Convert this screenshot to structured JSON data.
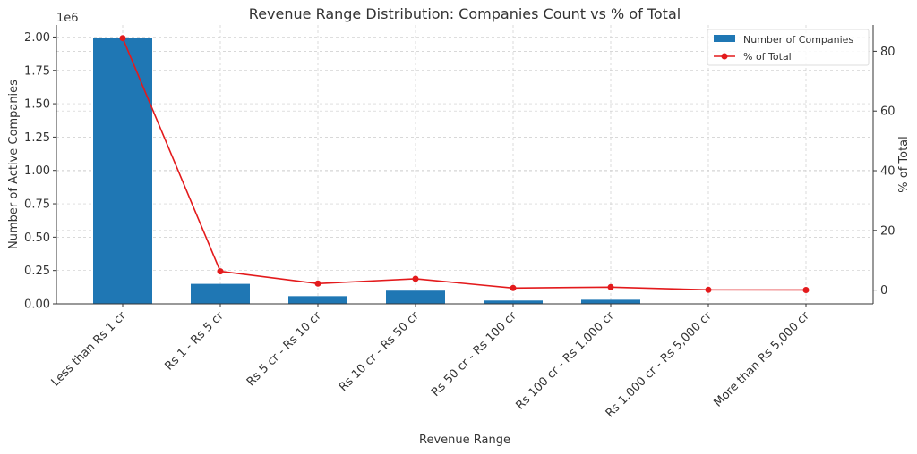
{
  "chart_data": {
    "type": "bar+line",
    "title": "Revenue Range Distribution: Companies Count vs % of Total",
    "xlabel": "Revenue Range",
    "ylabel": "Number of Active Companies",
    "ylabel_right": "% of Total",
    "y_offset_label": "1e6",
    "categories": [
      "Less than Rs 1 cr",
      "Rs 1 - Rs 5 cr",
      "Rs 5 cr - Rs 10 cr",
      "Rs 10 cr - Rs 50 cr",
      "Rs 50 cr - Rs 100 cr",
      "Rs 100 cr - Rs 1,000 cr",
      "Rs 1,000 cr - Rs 5,000 cr",
      "More than Rs 5,000 cr"
    ],
    "series": [
      {
        "name": "Number of Companies",
        "type": "bar",
        "axis": "left",
        "color": "#1f77b4",
        "values": [
          1990000,
          150000,
          58000,
          99000,
          25000,
          31000,
          3000,
          1000
        ]
      },
      {
        "name": "% of Total",
        "type": "line",
        "axis": "right",
        "color": "#e31a1c",
        "values": [
          84.4,
          6.3,
          2.2,
          3.8,
          0.7,
          1.0,
          0.1,
          0.05
        ]
      }
    ],
    "ylim": [
      0,
      2090000
    ],
    "ylim_right": [
      -4.6,
      88.8
    ],
    "yticks": [
      "0.00",
      "0.25",
      "0.50",
      "0.75",
      "1.00",
      "1.25",
      "1.50",
      "1.75",
      "2.00"
    ],
    "yticks_right": [
      "0",
      "20",
      "40",
      "60",
      "80"
    ],
    "grid": true,
    "legend": "top-right"
  }
}
